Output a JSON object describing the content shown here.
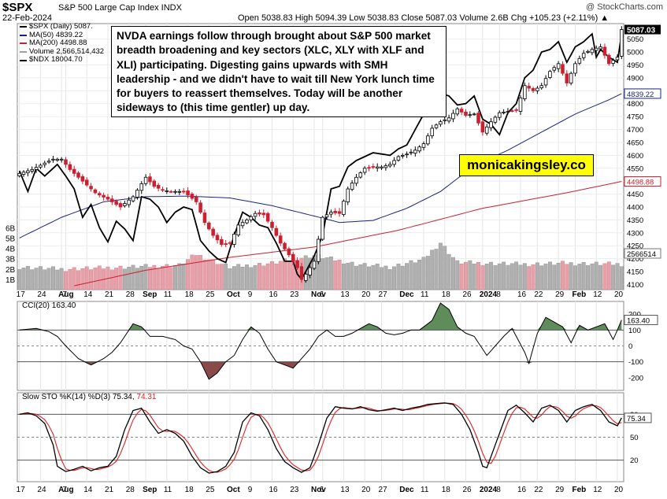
{
  "header": {
    "symbol": "$SPX",
    "fullname": "S&P 500 Large Cap Index INDX",
    "date": "22-Feb-2024",
    "ohlc": "Open 5038.83  High 5094.39  Low 5038.83  Close 5087.03  Volume 2.6B  Chg +105.23 (+2.11%) ▲",
    "credit": "@ StockCharts.com"
  },
  "legend": [
    {
      "label": "$SPX (Daily) 5087.",
      "color": "#000000"
    },
    {
      "label": "MA(50) 4839.22",
      "color": "#1a237e"
    },
    {
      "label": "MA(200) 4498.88",
      "color": "#cc1f2f"
    },
    {
      "label": "Volume 2,566,514,432",
      "color": "#9e9e9e"
    },
    {
      "label": "$NDX 18004.70",
      "color": "#000000"
    }
  ],
  "annotation": {
    "note": "NVDA earnings follow through brought about S&P 500 market breadth broadening and key sectors (XLC, XLY with XLF and XLI) participating. Digesting gains upwards with SMH leadership - and we didn't have to wait till New York lunch time for buyers to reassert themselves. Today will be another sideways to (this time gentler) up day.",
    "brand": "monicakingsley.co"
  },
  "panels": {
    "cci_label": "CCI(20) 163.40",
    "sto_label": "Slow STO %K(14) %D(3) 75.34,",
    "sto_label_d": "74.31"
  },
  "colors": {
    "up": "#000000",
    "down": "#cc1f2f",
    "ma50": "#1a237e",
    "ma200": "#cc1f2f",
    "vol_up": "#b0b0b0",
    "vol_down": "#e8a0a8",
    "cci_pos": "#5e8c5a",
    "cci_neg": "#8b4a4a",
    "pk": "#000000",
    "pd": "#e02020",
    "current_bg": "#000000"
  },
  "chart_data": {
    "type": "candlestick",
    "price_axis": {
      "ylim": [
        4080,
        5110
      ],
      "ticks": [
        4100,
        4150,
        4200,
        4250,
        4300,
        4350,
        4400,
        4450,
        4500,
        4550,
        4600,
        4650,
        4700,
        4750,
        4800,
        4850,
        4900,
        4950,
        5000,
        5050,
        5087.03
      ]
    },
    "volume_axis": {
      "ticks": [
        "1B",
        "2B",
        "3B",
        "4B",
        "5B",
        "6B"
      ],
      "value_ticks": [
        1,
        2,
        3,
        4,
        5,
        6
      ]
    },
    "x_ticks": [
      {
        "label": "17",
        "i": 0
      },
      {
        "label": "24",
        "i": 5
      },
      {
        "label": "Aug",
        "i": 10,
        "bold": true
      },
      {
        "label": "7",
        "i": 11
      },
      {
        "label": "14",
        "i": 16
      },
      {
        "label": "21",
        "i": 21
      },
      {
        "label": "28",
        "i": 26
      },
      {
        "label": "Sep",
        "i": 30,
        "bold": true
      },
      {
        "label": "11",
        "i": 35
      },
      {
        "label": "18",
        "i": 40
      },
      {
        "label": "25",
        "i": 45
      },
      {
        "label": "Oct",
        "i": 50,
        "bold": true
      },
      {
        "label": "9",
        "i": 55
      },
      {
        "label": "16",
        "i": 60
      },
      {
        "label": "23",
        "i": 65
      },
      {
        "label": "Nov",
        "i": 70,
        "bold": true
      },
      {
        "label": "6",
        "i": 72
      },
      {
        "label": "13",
        "i": 77
      },
      {
        "label": "20",
        "i": 82
      },
      {
        "label": "27",
        "i": 86
      },
      {
        "label": "Dec",
        "i": 91,
        "bold": true
      },
      {
        "label": "11",
        "i": 96
      },
      {
        "label": "18",
        "i": 101
      },
      {
        "label": "26",
        "i": 106
      },
      {
        "label": "2024",
        "i": 110,
        "bold": true
      },
      {
        "label": "8",
        "i": 114
      },
      {
        "label": "16",
        "i": 119
      },
      {
        "label": "22",
        "i": 123
      },
      {
        "label": "29",
        "i": 128
      },
      {
        "label": "Feb",
        "i": 132,
        "bold": true
      },
      {
        "label": "12",
        "i": 137
      },
      {
        "label": "20",
        "i": 142
      }
    ],
    "close_anchors": [
      [
        0,
        4530
      ],
      [
        3,
        4545
      ],
      [
        6,
        4570
      ],
      [
        8,
        4585
      ],
      [
        10,
        4585
      ],
      [
        12,
        4545
      ],
      [
        15,
        4500
      ],
      [
        18,
        4455
      ],
      [
        21,
        4430
      ],
      [
        24,
        4400
      ],
      [
        27,
        4440
      ],
      [
        30,
        4515
      ],
      [
        32,
        4480
      ],
      [
        34,
        4465
      ],
      [
        36,
        4460
      ],
      [
        39,
        4460
      ],
      [
        42,
        4420
      ],
      [
        44,
        4340
      ],
      [
        46,
        4290
      ],
      [
        48,
        4255
      ],
      [
        50,
        4260
      ],
      [
        52,
        4330
      ],
      [
        54,
        4350
      ],
      [
        56,
        4375
      ],
      [
        58,
        4370
      ],
      [
        60,
        4320
      ],
      [
        62,
        4260
      ],
      [
        64,
        4215
      ],
      [
        66,
        4165
      ],
      [
        67,
        4120
      ],
      [
        68,
        4140
      ],
      [
        70,
        4190
      ],
      [
        72,
        4360
      ],
      [
        74,
        4380
      ],
      [
        76,
        4375
      ],
      [
        78,
        4470
      ],
      [
        80,
        4515
      ],
      [
        82,
        4550
      ],
      [
        84,
        4555
      ],
      [
        86,
        4555
      ],
      [
        88,
        4565
      ],
      [
        90,
        4595
      ],
      [
        92,
        4605
      ],
      [
        94,
        4620
      ],
      [
        96,
        4645
      ],
      [
        98,
        4705
      ],
      [
        100,
        4730
      ],
      [
        102,
        4745
      ],
      [
        104,
        4780
      ],
      [
        106,
        4755
      ],
      [
        108,
        4760
      ],
      [
        110,
        4690
      ],
      [
        112,
        4730
      ],
      [
        114,
        4765
      ],
      [
        116,
        4770
      ],
      [
        118,
        4775
      ],
      [
        120,
        4870
      ],
      [
        122,
        4850
      ],
      [
        124,
        4870
      ],
      [
        126,
        4925
      ],
      [
        128,
        4955
      ],
      [
        130,
        4880
      ],
      [
        132,
        4955
      ],
      [
        134,
        4995
      ],
      [
        136,
        5010
      ],
      [
        138,
        5020
      ],
      [
        140,
        4955
      ],
      [
        142,
        4980
      ],
      [
        143,
        5087
      ]
    ],
    "ma50_anchors": [
      [
        0,
        4280
      ],
      [
        10,
        4360
      ],
      [
        20,
        4420
      ],
      [
        30,
        4440
      ],
      [
        40,
        4442
      ],
      [
        50,
        4435
      ],
      [
        60,
        4405
      ],
      [
        70,
        4365
      ],
      [
        76,
        4340
      ],
      [
        84,
        4348
      ],
      [
        92,
        4395
      ],
      [
        100,
        4460
      ],
      [
        108,
        4560
      ],
      [
        116,
        4620
      ],
      [
        124,
        4690
      ],
      [
        132,
        4760
      ],
      [
        140,
        4815
      ],
      [
        143,
        4839
      ]
    ],
    "ma200_anchors": [
      [
        13,
        4095
      ],
      [
        30,
        4155
      ],
      [
        50,
        4205
      ],
      [
        70,
        4245
      ],
      [
        90,
        4310
      ],
      [
        110,
        4395
      ],
      [
        130,
        4455
      ],
      [
        143,
        4498.88
      ]
    ],
    "ndx_anchors": [
      [
        0,
        4540
      ],
      [
        2,
        4460
      ],
      [
        4,
        4550
      ],
      [
        6,
        4520
      ],
      [
        9,
        4565
      ],
      [
        11,
        4520
      ],
      [
        13,
        4470
      ],
      [
        15,
        4360
      ],
      [
        17,
        4410
      ],
      [
        19,
        4320
      ],
      [
        21,
        4265
      ],
      [
        23,
        4345
      ],
      [
        25,
        4315
      ],
      [
        27,
        4270
      ],
      [
        29,
        4440
      ],
      [
        31,
        4430
      ],
      [
        33,
        4400
      ],
      [
        35,
        4340
      ],
      [
        37,
        4380
      ],
      [
        39,
        4400
      ],
      [
        41,
        4390
      ],
      [
        43,
        4270
      ],
      [
        45,
        4230
      ],
      [
        47,
        4200
      ],
      [
        49,
        4185
      ],
      [
        51,
        4290
      ],
      [
        53,
        4380
      ],
      [
        55,
        4360
      ],
      [
        57,
        4330
      ],
      [
        59,
        4320
      ],
      [
        61,
        4260
      ],
      [
        63,
        4190
      ],
      [
        65,
        4190
      ],
      [
        66,
        4140
      ],
      [
        67,
        4120
      ],
      [
        68,
        4150
      ],
      [
        70,
        4210
      ],
      [
        72,
        4290
      ],
      [
        74,
        4470
      ],
      [
        76,
        4480
      ],
      [
        78,
        4555
      ],
      [
        80,
        4580
      ],
      [
        82,
        4595
      ],
      [
        84,
        4610
      ],
      [
        86,
        4605
      ],
      [
        88,
        4600
      ],
      [
        90,
        4625
      ],
      [
        92,
        4640
      ],
      [
        94,
        4700
      ],
      [
        96,
        4760
      ],
      [
        98,
        4780
      ],
      [
        100,
        4840
      ],
      [
        102,
        4830
      ],
      [
        104,
        4795
      ],
      [
        106,
        4800
      ],
      [
        108,
        4830
      ],
      [
        110,
        4740
      ],
      [
        112,
        4720
      ],
      [
        114,
        4680
      ],
      [
        116,
        4765
      ],
      [
        118,
        4800
      ],
      [
        120,
        4900
      ],
      [
        122,
        4930
      ],
      [
        124,
        5000
      ],
      [
        126,
        5010
      ],
      [
        128,
        5040
      ],
      [
        130,
        4960
      ],
      [
        132,
        5020
      ],
      [
        134,
        5040
      ],
      [
        136,
        5070
      ],
      [
        137,
        4980
      ],
      [
        138,
        5010
      ],
      [
        140,
        4980
      ],
      [
        142,
        4960
      ],
      [
        143,
        5070
      ]
    ],
    "volume_anchors": [
      [
        0,
        2.3
      ],
      [
        10,
        2.1
      ],
      [
        25,
        2.3
      ],
      [
        38,
        2.5
      ],
      [
        42,
        3.6
      ],
      [
        50,
        2.3
      ],
      [
        60,
        2.7
      ],
      [
        66,
        3.2
      ],
      [
        70,
        3.5
      ],
      [
        80,
        2.6
      ],
      [
        88,
        2.3
      ],
      [
        96,
        3.1
      ],
      [
        100,
        4.8
      ],
      [
        104,
        2.8
      ],
      [
        110,
        2.7
      ],
      [
        120,
        2.6
      ],
      [
        130,
        2.7
      ],
      [
        143,
        2.6
      ]
    ],
    "cci": {
      "ylim": [
        -280,
        280
      ],
      "ticks": [
        -200,
        -100,
        0,
        100,
        200
      ],
      "last": 163.4,
      "anchors": [
        [
          0,
          100
        ],
        [
          4,
          110
        ],
        [
          7,
          90
        ],
        [
          9,
          60
        ],
        [
          11,
          0
        ],
        [
          14,
          -80
        ],
        [
          17,
          -120
        ],
        [
          20,
          -80
        ],
        [
          22,
          -40
        ],
        [
          24,
          20
        ],
        [
          27,
          140
        ],
        [
          29,
          120
        ],
        [
          31,
          60
        ],
        [
          34,
          60
        ],
        [
          37,
          40
        ],
        [
          39,
          0
        ],
        [
          41,
          -20
        ],
        [
          43,
          -100
        ],
        [
          45,
          -210
        ],
        [
          47,
          -170
        ],
        [
          49,
          -100
        ],
        [
          51,
          -60
        ],
        [
          53,
          40
        ],
        [
          55,
          120
        ],
        [
          57,
          80
        ],
        [
          59,
          -20
        ],
        [
          61,
          -100
        ],
        [
          63,
          -120
        ],
        [
          65,
          -140
        ],
        [
          67,
          -80
        ],
        [
          69,
          -20
        ],
        [
          71,
          60
        ],
        [
          73,
          100
        ],
        [
          75,
          60
        ],
        [
          77,
          60
        ],
        [
          79,
          80
        ],
        [
          81,
          110
        ],
        [
          83,
          140
        ],
        [
          85,
          120
        ],
        [
          87,
          80
        ],
        [
          89,
          70
        ],
        [
          91,
          80
        ],
        [
          93,
          100
        ],
        [
          95,
          100
        ],
        [
          98,
          160
        ],
        [
          100,
          270
        ],
        [
          102,
          230
        ],
        [
          104,
          120
        ],
        [
          106,
          80
        ],
        [
          108,
          60
        ],
        [
          110,
          -20
        ],
        [
          111,
          -60
        ],
        [
          113,
          0
        ],
        [
          115,
          60
        ],
        [
          117,
          110
        ],
        [
          118,
          60
        ],
        [
          120,
          -40
        ],
        [
          121,
          -110
        ],
        [
          123,
          80
        ],
        [
          125,
          180
        ],
        [
          127,
          150
        ],
        [
          129,
          120
        ],
        [
          131,
          20
        ],
        [
          133,
          130
        ],
        [
          135,
          100
        ],
        [
          137,
          120
        ],
        [
          139,
          140
        ],
        [
          141,
          40
        ],
        [
          142,
          100
        ],
        [
          143,
          163
        ]
      ]
    },
    "sto": {
      "ylim": [
        0,
        100
      ],
      "ticks": [
        20,
        50,
        80
      ],
      "k_last": 75.34,
      "d_last": 74.31,
      "k_anchors": [
        [
          0,
          80
        ],
        [
          2,
          82
        ],
        [
          4,
          78
        ],
        [
          6,
          68
        ],
        [
          8,
          40
        ],
        [
          9,
          12
        ],
        [
          11,
          5
        ],
        [
          13,
          8
        ],
        [
          15,
          12
        ],
        [
          17,
          6
        ],
        [
          19,
          10
        ],
        [
          21,
          12
        ],
        [
          23,
          25
        ],
        [
          25,
          60
        ],
        [
          27,
          85
        ],
        [
          29,
          88
        ],
        [
          31,
          70
        ],
        [
          33,
          55
        ],
        [
          35,
          60
        ],
        [
          37,
          55
        ],
        [
          39,
          45
        ],
        [
          41,
          25
        ],
        [
          43,
          10
        ],
        [
          45,
          3
        ],
        [
          47,
          5
        ],
        [
          49,
          12
        ],
        [
          51,
          30
        ],
        [
          53,
          70
        ],
        [
          55,
          82
        ],
        [
          57,
          78
        ],
        [
          59,
          60
        ],
        [
          61,
          35
        ],
        [
          63,
          18
        ],
        [
          65,
          10
        ],
        [
          67,
          4
        ],
        [
          69,
          10
        ],
        [
          71,
          40
        ],
        [
          73,
          75
        ],
        [
          75,
          90
        ],
        [
          77,
          88
        ],
        [
          79,
          87
        ],
        [
          81,
          90
        ],
        [
          83,
          86
        ],
        [
          85,
          84
        ],
        [
          87,
          86
        ],
        [
          89,
          88
        ],
        [
          91,
          85
        ],
        [
          93,
          88
        ],
        [
          95,
          90
        ],
        [
          97,
          93
        ],
        [
          99,
          94
        ],
        [
          101,
          95
        ],
        [
          103,
          93
        ],
        [
          105,
          80
        ],
        [
          107,
          60
        ],
        [
          109,
          30
        ],
        [
          110,
          12
        ],
        [
          111,
          10
        ],
        [
          112,
          25
        ],
        [
          114,
          55
        ],
        [
          116,
          85
        ],
        [
          118,
          92
        ],
        [
          120,
          82
        ],
        [
          122,
          70
        ],
        [
          124,
          88
        ],
        [
          126,
          92
        ],
        [
          128,
          85
        ],
        [
          130,
          70
        ],
        [
          132,
          85
        ],
        [
          134,
          90
        ],
        [
          136,
          93
        ],
        [
          138,
          85
        ],
        [
          140,
          70
        ],
        [
          142,
          65
        ],
        [
          143,
          75.34
        ]
      ]
    }
  }
}
